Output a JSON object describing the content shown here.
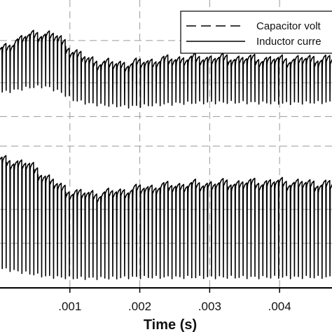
{
  "chart_data": {
    "type": "line",
    "xlabel": "Time (s)",
    "x_tick_labels": [
      ".001",
      ".002",
      ".003",
      ".004"
    ],
    "x_ticks": [
      0.001,
      0.002,
      0.003,
      0.004
    ],
    "xlim": [
      0.0,
      0.00475
    ],
    "grid": true,
    "legend_placement": "top-right",
    "series": [
      {
        "name": "Capacitor volt",
        "style": "dashed",
        "color": "#000000",
        "switching_period": 5.65e-05,
        "envelope_x": [
          0.0,
          0.0002,
          0.0004,
          0.0006,
          0.0008,
          0.001,
          0.0012,
          0.0014,
          0.0016,
          0.0018,
          0.002,
          0.0025,
          0.003,
          0.0035,
          0.004,
          0.0045,
          0.00475
        ],
        "upper": [
          0.7,
          0.82,
          0.88,
          0.9,
          0.86,
          0.7,
          0.6,
          0.56,
          0.54,
          0.54,
          0.56,
          0.6,
          0.61,
          0.6,
          0.59,
          0.6,
          0.6
        ],
        "lower": [
          0.19,
          0.22,
          0.25,
          0.26,
          0.2,
          0.1,
          0.06,
          0.04,
          0.03,
          0.02,
          0.03,
          0.06,
          0.07,
          0.07,
          0.06,
          0.07,
          0.07
        ]
      },
      {
        "name": "Inductor curre",
        "style": "solid",
        "color": "#000000",
        "switching_period": 5.65e-05,
        "envelope_x": [
          0.0,
          0.0002,
          0.0004,
          0.0006,
          0.0008,
          0.001,
          0.0012,
          0.0014,
          0.0016,
          0.0018,
          0.002,
          0.0025,
          0.003,
          0.0035,
          0.004,
          0.0045,
          0.00475
        ],
        "upper": [
          -0.6,
          -0.62,
          -0.66,
          -0.78,
          -0.9,
          -0.98,
          -1.0,
          -1.0,
          -0.98,
          -0.96,
          -0.93,
          -0.9,
          -0.88,
          -0.87,
          -0.86,
          -0.88,
          -0.88
        ],
        "lower": [
          -1.9,
          -1.93,
          -1.96,
          -1.99,
          -2.0,
          -2.01,
          -2.01,
          -2.01,
          -2.01,
          -2.0,
          -2.0,
          -2.0,
          -2.0,
          -2.0,
          -2.0,
          -2.0,
          -2.0
        ]
      }
    ],
    "y_grid_values": [
      0.8,
      0.3,
      -0.1,
      -0.45,
      -1.2,
      -1.6
    ]
  }
}
